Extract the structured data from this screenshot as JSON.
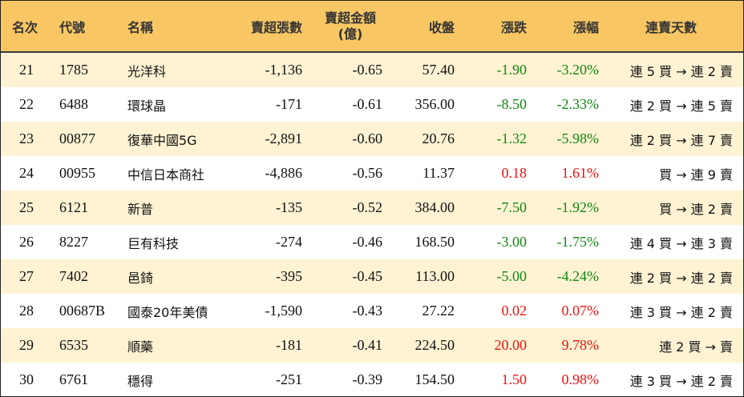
{
  "columns": {
    "rank": "名次",
    "code": "代號",
    "name": "名稱",
    "sell_lots": "賣超張數",
    "sell_amount_l1": "賣超金額",
    "sell_amount_l2": "(億)",
    "close": "收盤",
    "change": "漲跌",
    "change_pct": "漲幅",
    "streak": "連賣天數"
  },
  "rows": [
    {
      "rank": "21",
      "code": "1785",
      "name": "光洋科",
      "sell_lots": "-1,136",
      "sell_amount": "-0.65",
      "close": "57.40",
      "change": "-1.90",
      "change_pct": "-3.20%",
      "streak": "連 5 買 → 連 2 賣",
      "dir": "down"
    },
    {
      "rank": "22",
      "code": "6488",
      "name": "環球晶",
      "sell_lots": "-171",
      "sell_amount": "-0.61",
      "close": "356.00",
      "change": "-8.50",
      "change_pct": "-2.33%",
      "streak": "連 2 買 → 連 5 賣",
      "dir": "down"
    },
    {
      "rank": "23",
      "code": "00877",
      "name": "復華中國5G",
      "sell_lots": "-2,891",
      "sell_amount": "-0.60",
      "close": "20.76",
      "change": "-1.32",
      "change_pct": "-5.98%",
      "streak": "連 2 買 → 連 7 賣",
      "dir": "down"
    },
    {
      "rank": "24",
      "code": "00955",
      "name": "中信日本商社",
      "sell_lots": "-4,886",
      "sell_amount": "-0.56",
      "close": "11.37",
      "change": "0.18",
      "change_pct": "1.61%",
      "streak": "買 → 連 9 賣",
      "dir": "up"
    },
    {
      "rank": "25",
      "code": "6121",
      "name": "新普",
      "sell_lots": "-135",
      "sell_amount": "-0.52",
      "close": "384.00",
      "change": "-7.50",
      "change_pct": "-1.92%",
      "streak": "買 → 連 2 賣",
      "dir": "down"
    },
    {
      "rank": "26",
      "code": "8227",
      "name": "巨有科技",
      "sell_lots": "-274",
      "sell_amount": "-0.46",
      "close": "168.50",
      "change": "-3.00",
      "change_pct": "-1.75%",
      "streak": "連 4 買 → 連 3 賣",
      "dir": "down"
    },
    {
      "rank": "27",
      "code": "7402",
      "name": "邑錡",
      "sell_lots": "-395",
      "sell_amount": "-0.45",
      "close": "113.00",
      "change": "-5.00",
      "change_pct": "-4.24%",
      "streak": "連 2 買 → 連 2 賣",
      "dir": "down"
    },
    {
      "rank": "28",
      "code": "00687B",
      "name": "國泰20年美債",
      "sell_lots": "-1,590",
      "sell_amount": "-0.43",
      "close": "27.22",
      "change": "0.02",
      "change_pct": "0.07%",
      "streak": "連 3 買 → 連 2 賣",
      "dir": "up"
    },
    {
      "rank": "29",
      "code": "6535",
      "name": "順藥",
      "sell_lots": "-181",
      "sell_amount": "-0.41",
      "close": "224.50",
      "change": "20.00",
      "change_pct": "9.78%",
      "streak": "連 2 買 → 賣",
      "dir": "up"
    },
    {
      "rank": "30",
      "code": "6761",
      "name": "穩得",
      "sell_lots": "-251",
      "sell_amount": "-0.39",
      "close": "154.50",
      "change": "1.50",
      "change_pct": "0.98%",
      "streak": "連 3 買 → 連 2 賣",
      "dir": "up"
    }
  ],
  "colors": {
    "header_bg": "#f8c764",
    "odd_row_bg": "#fff3d3",
    "up": "#ee1111",
    "down": "#118811"
  }
}
